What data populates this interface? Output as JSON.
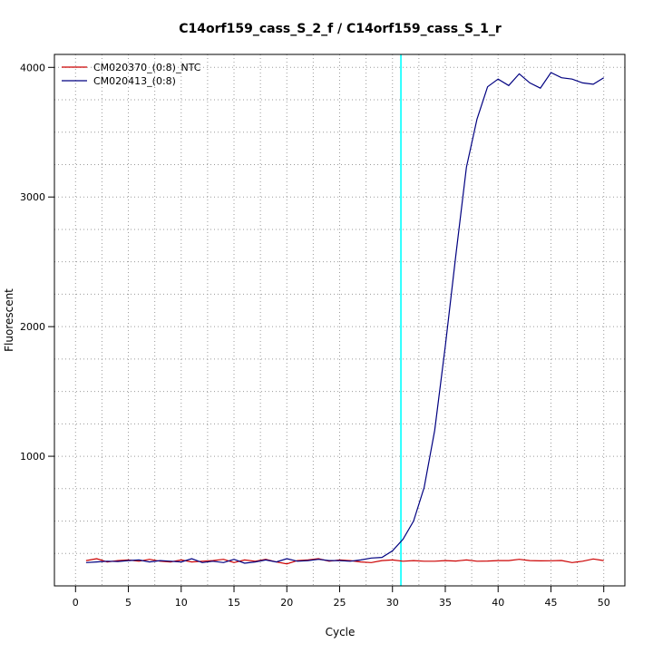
{
  "chart_data": {
    "type": "line",
    "title": "C14orf159_cass_S_2_f / C14orf159_cass_S_1_r",
    "xlabel": "Cycle",
    "ylabel": "Fluorescent",
    "xlim": [
      -2,
      52
    ],
    "ylim": [
      0,
      4100
    ],
    "x_ticks": [
      "0",
      "5",
      "10",
      "15",
      "20",
      "25",
      "30",
      "35",
      "40",
      "45",
      "50"
    ],
    "y_ticks": [
      "1000",
      "2000",
      "3000",
      "4000"
    ],
    "grid": true,
    "legend_position": "top-left",
    "threshold_cycle": 30.8,
    "threshold_color": "#00ffff",
    "series": [
      {
        "name": "CM020370_(0:8)_NTC",
        "color": "#cc0000",
        "x": [
          1,
          2,
          3,
          4,
          5,
          6,
          7,
          8,
          9,
          10,
          11,
          12,
          13,
          14,
          15,
          16,
          17,
          18,
          19,
          20,
          21,
          22,
          23,
          24,
          25,
          26,
          27,
          28,
          29,
          30,
          31,
          32,
          33,
          34,
          35,
          36,
          37,
          38,
          39,
          40,
          41,
          42,
          43,
          44,
          45,
          46,
          47,
          48,
          49,
          50
        ],
        "values": [
          195,
          210,
          185,
          195,
          200,
          190,
          205,
          190,
          185,
          200,
          185,
          190,
          195,
          205,
          180,
          200,
          190,
          205,
          185,
          170,
          195,
          200,
          210,
          190,
          200,
          195,
          185,
          180,
          195,
          200,
          190,
          195,
          190,
          190,
          195,
          192,
          200,
          190,
          192,
          195,
          195,
          205,
          195,
          193,
          194,
          196,
          180,
          190,
          208,
          195
        ]
      },
      {
        "name": "CM020413_(0:8)",
        "color": "#000080",
        "x": [
          1,
          2,
          3,
          4,
          5,
          6,
          7,
          8,
          9,
          10,
          11,
          12,
          13,
          14,
          15,
          16,
          17,
          18,
          19,
          20,
          21,
          22,
          23,
          24,
          25,
          26,
          27,
          28,
          29,
          30,
          31,
          32,
          33,
          34,
          35,
          36,
          37,
          38,
          39,
          40,
          41,
          42,
          43,
          44,
          45,
          46,
          47,
          48,
          49,
          50
        ],
        "values": [
          180,
          185,
          190,
          188,
          195,
          200,
          185,
          195,
          190,
          185,
          210,
          180,
          190,
          180,
          205,
          175,
          185,
          200,
          185,
          210,
          190,
          195,
          205,
          195,
          195,
          190,
          200,
          215,
          220,
          270,
          360,
          500,
          760,
          1200,
          1850,
          2550,
          3230,
          3600,
          3850,
          3910,
          3860,
          3950,
          3880,
          3840,
          3960,
          3920,
          3910,
          3880,
          3870,
          3920
        ]
      }
    ]
  }
}
